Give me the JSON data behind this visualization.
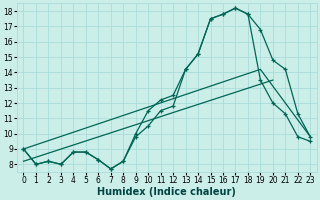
{
  "xlabel": "Humidex (Indice chaleur)",
  "background_color": "#cceee8",
  "grid_color": "#aaddda",
  "line_color": "#006655",
  "xlim": [
    -0.5,
    23.5
  ],
  "ylim": [
    7.5,
    18.5
  ],
  "xticks": [
    0,
    1,
    2,
    3,
    4,
    5,
    6,
    7,
    8,
    9,
    10,
    11,
    12,
    13,
    14,
    15,
    16,
    17,
    18,
    19,
    20,
    21,
    22,
    23
  ],
  "yticks": [
    8,
    9,
    10,
    11,
    12,
    13,
    14,
    15,
    16,
    17,
    18
  ],
  "series1_x": [
    0,
    1,
    2,
    3,
    4,
    5,
    6,
    7,
    8,
    9,
    10,
    11,
    12,
    13,
    14,
    15,
    16,
    17,
    18,
    19,
    20,
    21,
    22,
    23
  ],
  "series1_y": [
    9.0,
    8.0,
    8.2,
    8.0,
    8.8,
    8.8,
    8.3,
    7.7,
    8.2,
    10.0,
    11.5,
    12.2,
    12.5,
    14.2,
    15.2,
    17.5,
    17.8,
    18.2,
    17.8,
    16.8,
    14.8,
    14.2,
    11.3,
    9.8
  ],
  "series2_x": [
    0,
    1,
    2,
    3,
    4,
    5,
    6,
    7,
    8,
    9,
    10,
    11,
    12,
    13,
    14,
    15,
    16,
    17,
    18,
    19,
    20,
    21,
    22,
    23
  ],
  "series2_y": [
    9.0,
    8.0,
    8.2,
    8.0,
    8.8,
    8.8,
    8.3,
    7.7,
    8.2,
    9.8,
    10.5,
    11.5,
    11.8,
    14.2,
    15.2,
    17.5,
    17.8,
    18.2,
    17.8,
    13.5,
    12.0,
    11.3,
    9.8,
    9.5
  ],
  "series3_x": [
    0,
    19,
    23
  ],
  "series3_y": [
    9.0,
    14.2,
    9.8
  ],
  "series4_x": [
    0,
    20
  ],
  "series4_y": [
    8.2,
    13.5
  ],
  "xlabel_fontsize": 7,
  "xlabel_color": "#004444",
  "tick_fontsize": 5.5
}
